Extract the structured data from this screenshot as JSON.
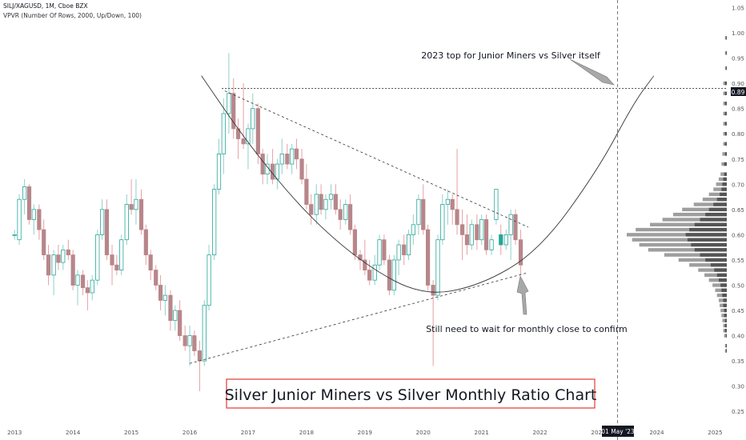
{
  "header": {
    "symbol_line": "SILJ/XAGUSD, 1M, Cboe BZX",
    "indicator_line": "VPVR (Number Of Rows, 2000, Up/Down, 100)"
  },
  "colors": {
    "up": "#26a69a",
    "down": "#b8868a",
    "up_wick": "#8fd1c8",
    "down_wick": "#e8a0a4",
    "vol_dark": "#555555",
    "vol_light": "#9e9e9e",
    "highlight": "#26a69a",
    "title_border": "#e53935"
  },
  "annotations": {
    "top_note": "2023 top for Junior Miners vs Silver itself",
    "bottom_note": "Still need to wait for monthly close to confirm",
    "title_box": "Silver Junior Miners vs Silver Monthly Ratio Chart",
    "price_marker": "0.89",
    "date_marker": "01 May '23"
  },
  "chart_data": {
    "type": "candlestick",
    "title": "Silver Junior Miners vs Silver Monthly Ratio Chart",
    "symbol": "SILJ/XAGUSD",
    "interval": "1M",
    "y_axis": {
      "ticks": [
        0.25,
        0.3,
        0.35,
        0.4,
        0.45,
        0.5,
        0.55,
        0.6,
        0.65,
        0.7,
        0.75,
        0.8,
        0.85,
        0.9,
        0.95,
        1.0,
        1.05
      ],
      "tick_labels": [
        "0.25",
        "0.30",
        "0.35",
        "0.40",
        "0.45",
        "0.50",
        "0.55",
        "0.60",
        "0.65",
        "0.70",
        "0.75",
        "0.80",
        "0.85",
        "0.90",
        "0.95",
        "1.00",
        "1.05"
      ],
      "ylim": [
        0.225,
        1.065
      ]
    },
    "x_axis": {
      "tick_labels": [
        "2013",
        "2014",
        "2015",
        "2016",
        "2017",
        "2018",
        "2019",
        "2020",
        "2021",
        "2022",
        "2023",
        "2024",
        "2025"
      ],
      "tick_years": [
        2013,
        2014,
        2015,
        2016,
        2017,
        2018,
        2019,
        2020,
        2021,
        2022,
        2023,
        2024,
        2025
      ],
      "xlim": [
        2012.75,
        2025.2
      ]
    },
    "grid": false,
    "horizontal_line": 0.89,
    "vertical_line_date": "2023-05-01",
    "candles": [
      {
        "t": 2013.0,
        "o": 0.6,
        "h": 0.61,
        "l": 0.59,
        "c": 0.6
      },
      {
        "t": 2013.08,
        "o": 0.59,
        "h": 0.68,
        "l": 0.58,
        "c": 0.67
      },
      {
        "t": 2013.17,
        "o": 0.67,
        "h": 0.71,
        "l": 0.64,
        "c": 0.695
      },
      {
        "t": 2013.25,
        "o": 0.695,
        "h": 0.7,
        "l": 0.62,
        "c": 0.63
      },
      {
        "t": 2013.33,
        "o": 0.63,
        "h": 0.66,
        "l": 0.6,
        "c": 0.65
      },
      {
        "t": 2013.42,
        "o": 0.65,
        "h": 0.66,
        "l": 0.59,
        "c": 0.61
      },
      {
        "t": 2013.5,
        "o": 0.61,
        "h": 0.63,
        "l": 0.55,
        "c": 0.56
      },
      {
        "t": 2013.58,
        "o": 0.56,
        "h": 0.58,
        "l": 0.5,
        "c": 0.52
      },
      {
        "t": 2013.67,
        "o": 0.52,
        "h": 0.57,
        "l": 0.48,
        "c": 0.56
      },
      {
        "t": 2013.75,
        "o": 0.56,
        "h": 0.58,
        "l": 0.53,
        "c": 0.545
      },
      {
        "t": 2013.83,
        "o": 0.545,
        "h": 0.58,
        "l": 0.53,
        "c": 0.57
      },
      {
        "t": 2013.92,
        "o": 0.57,
        "h": 0.59,
        "l": 0.55,
        "c": 0.56
      },
      {
        "t": 2014.0,
        "o": 0.56,
        "h": 0.57,
        "l": 0.49,
        "c": 0.5
      },
      {
        "t": 2014.08,
        "o": 0.5,
        "h": 0.53,
        "l": 0.46,
        "c": 0.52
      },
      {
        "t": 2014.17,
        "o": 0.52,
        "h": 0.53,
        "l": 0.48,
        "c": 0.495
      },
      {
        "t": 2014.25,
        "o": 0.495,
        "h": 0.51,
        "l": 0.45,
        "c": 0.485
      },
      {
        "t": 2014.33,
        "o": 0.485,
        "h": 0.52,
        "l": 0.47,
        "c": 0.51
      },
      {
        "t": 2014.42,
        "o": 0.51,
        "h": 0.61,
        "l": 0.5,
        "c": 0.6
      },
      {
        "t": 2014.5,
        "o": 0.6,
        "h": 0.67,
        "l": 0.59,
        "c": 0.65
      },
      {
        "t": 2014.58,
        "o": 0.65,
        "h": 0.67,
        "l": 0.55,
        "c": 0.56
      },
      {
        "t": 2014.67,
        "o": 0.56,
        "h": 0.58,
        "l": 0.5,
        "c": 0.54
      },
      {
        "t": 2014.75,
        "o": 0.54,
        "h": 0.56,
        "l": 0.52,
        "c": 0.53
      },
      {
        "t": 2014.83,
        "o": 0.53,
        "h": 0.6,
        "l": 0.52,
        "c": 0.59
      },
      {
        "t": 2014.92,
        "o": 0.59,
        "h": 0.68,
        "l": 0.58,
        "c": 0.66
      },
      {
        "t": 2015.0,
        "o": 0.66,
        "h": 0.71,
        "l": 0.64,
        "c": 0.65
      },
      {
        "t": 2015.08,
        "o": 0.65,
        "h": 0.71,
        "l": 0.62,
        "c": 0.67
      },
      {
        "t": 2015.17,
        "o": 0.67,
        "h": 0.69,
        "l": 0.6,
        "c": 0.61
      },
      {
        "t": 2015.25,
        "o": 0.61,
        "h": 0.62,
        "l": 0.54,
        "c": 0.56
      },
      {
        "t": 2015.33,
        "o": 0.56,
        "h": 0.57,
        "l": 0.51,
        "c": 0.53
      },
      {
        "t": 2015.42,
        "o": 0.53,
        "h": 0.54,
        "l": 0.49,
        "c": 0.5
      },
      {
        "t": 2015.5,
        "o": 0.5,
        "h": 0.52,
        "l": 0.45,
        "c": 0.47
      },
      {
        "t": 2015.58,
        "o": 0.47,
        "h": 0.5,
        "l": 0.44,
        "c": 0.48
      },
      {
        "t": 2015.67,
        "o": 0.48,
        "h": 0.49,
        "l": 0.41,
        "c": 0.43
      },
      {
        "t": 2015.75,
        "o": 0.43,
        "h": 0.46,
        "l": 0.41,
        "c": 0.45
      },
      {
        "t": 2015.83,
        "o": 0.45,
        "h": 0.47,
        "l": 0.39,
        "c": 0.4
      },
      {
        "t": 2015.92,
        "o": 0.4,
        "h": 0.42,
        "l": 0.37,
        "c": 0.38
      },
      {
        "t": 2016.0,
        "o": 0.38,
        "h": 0.42,
        "l": 0.34,
        "c": 0.4
      },
      {
        "t": 2016.08,
        "o": 0.4,
        "h": 0.41,
        "l": 0.36,
        "c": 0.37
      },
      {
        "t": 2016.17,
        "o": 0.37,
        "h": 0.39,
        "l": 0.29,
        "c": 0.35
      },
      {
        "t": 2016.25,
        "o": 0.35,
        "h": 0.47,
        "l": 0.34,
        "c": 0.46
      },
      {
        "t": 2016.33,
        "o": 0.46,
        "h": 0.58,
        "l": 0.45,
        "c": 0.56
      },
      {
        "t": 2016.42,
        "o": 0.56,
        "h": 0.7,
        "l": 0.55,
        "c": 0.69
      },
      {
        "t": 2016.5,
        "o": 0.69,
        "h": 0.79,
        "l": 0.68,
        "c": 0.76
      },
      {
        "t": 2016.58,
        "o": 0.76,
        "h": 0.87,
        "l": 0.72,
        "c": 0.84
      },
      {
        "t": 2016.67,
        "o": 0.84,
        "h": 0.96,
        "l": 0.8,
        "c": 0.88
      },
      {
        "t": 2016.75,
        "o": 0.88,
        "h": 0.91,
        "l": 0.79,
        "c": 0.81
      },
      {
        "t": 2016.83,
        "o": 0.81,
        "h": 0.83,
        "l": 0.75,
        "c": 0.79
      },
      {
        "t": 2016.92,
        "o": 0.79,
        "h": 0.9,
        "l": 0.77,
        "c": 0.78
      },
      {
        "t": 2017.0,
        "o": 0.78,
        "h": 0.82,
        "l": 0.73,
        "c": 0.81
      },
      {
        "t": 2017.08,
        "o": 0.81,
        "h": 0.88,
        "l": 0.78,
        "c": 0.85
      },
      {
        "t": 2017.17,
        "o": 0.85,
        "h": 0.86,
        "l": 0.74,
        "c": 0.76
      },
      {
        "t": 2017.25,
        "o": 0.76,
        "h": 0.77,
        "l": 0.7,
        "c": 0.72
      },
      {
        "t": 2017.33,
        "o": 0.72,
        "h": 0.76,
        "l": 0.7,
        "c": 0.74
      },
      {
        "t": 2017.42,
        "o": 0.74,
        "h": 0.77,
        "l": 0.7,
        "c": 0.71
      },
      {
        "t": 2017.5,
        "o": 0.71,
        "h": 0.75,
        "l": 0.69,
        "c": 0.74
      },
      {
        "t": 2017.58,
        "o": 0.74,
        "h": 0.79,
        "l": 0.72,
        "c": 0.76
      },
      {
        "t": 2017.67,
        "o": 0.76,
        "h": 0.78,
        "l": 0.73,
        "c": 0.74
      },
      {
        "t": 2017.75,
        "o": 0.74,
        "h": 0.78,
        "l": 0.72,
        "c": 0.77
      },
      {
        "t": 2017.83,
        "o": 0.77,
        "h": 0.79,
        "l": 0.73,
        "c": 0.75
      },
      {
        "t": 2017.92,
        "o": 0.75,
        "h": 0.77,
        "l": 0.7,
        "c": 0.71
      },
      {
        "t": 2018.0,
        "o": 0.71,
        "h": 0.74,
        "l": 0.65,
        "c": 0.66
      },
      {
        "t": 2018.08,
        "o": 0.66,
        "h": 0.68,
        "l": 0.62,
        "c": 0.64
      },
      {
        "t": 2018.17,
        "o": 0.64,
        "h": 0.7,
        "l": 0.62,
        "c": 0.68
      },
      {
        "t": 2018.25,
        "o": 0.68,
        "h": 0.7,
        "l": 0.64,
        "c": 0.65
      },
      {
        "t": 2018.33,
        "o": 0.65,
        "h": 0.68,
        "l": 0.63,
        "c": 0.67
      },
      {
        "t": 2018.42,
        "o": 0.67,
        "h": 0.7,
        "l": 0.65,
        "c": 0.68
      },
      {
        "t": 2018.5,
        "o": 0.68,
        "h": 0.7,
        "l": 0.64,
        "c": 0.65
      },
      {
        "t": 2018.58,
        "o": 0.65,
        "h": 0.67,
        "l": 0.61,
        "c": 0.63
      },
      {
        "t": 2018.67,
        "o": 0.63,
        "h": 0.67,
        "l": 0.62,
        "c": 0.66
      },
      {
        "t": 2018.75,
        "o": 0.66,
        "h": 0.68,
        "l": 0.6,
        "c": 0.61
      },
      {
        "t": 2018.83,
        "o": 0.61,
        "h": 0.62,
        "l": 0.55,
        "c": 0.56
      },
      {
        "t": 2018.92,
        "o": 0.56,
        "h": 0.57,
        "l": 0.53,
        "c": 0.55
      },
      {
        "t": 2019.0,
        "o": 0.55,
        "h": 0.59,
        "l": 0.52,
        "c": 0.53
      },
      {
        "t": 2019.08,
        "o": 0.53,
        "h": 0.55,
        "l": 0.5,
        "c": 0.51
      },
      {
        "t": 2019.17,
        "o": 0.51,
        "h": 0.56,
        "l": 0.5,
        "c": 0.54
      },
      {
        "t": 2019.25,
        "o": 0.54,
        "h": 0.6,
        "l": 0.53,
        "c": 0.59
      },
      {
        "t": 2019.33,
        "o": 0.59,
        "h": 0.6,
        "l": 0.54,
        "c": 0.55
      },
      {
        "t": 2019.42,
        "o": 0.55,
        "h": 0.56,
        "l": 0.48,
        "c": 0.49
      },
      {
        "t": 2019.5,
        "o": 0.49,
        "h": 0.56,
        "l": 0.48,
        "c": 0.55
      },
      {
        "t": 2019.58,
        "o": 0.55,
        "h": 0.59,
        "l": 0.52,
        "c": 0.58
      },
      {
        "t": 2019.67,
        "o": 0.58,
        "h": 0.6,
        "l": 0.54,
        "c": 0.56
      },
      {
        "t": 2019.75,
        "o": 0.56,
        "h": 0.61,
        "l": 0.55,
        "c": 0.6
      },
      {
        "t": 2019.83,
        "o": 0.6,
        "h": 0.64,
        "l": 0.58,
        "c": 0.62
      },
      {
        "t": 2019.92,
        "o": 0.62,
        "h": 0.68,
        "l": 0.6,
        "c": 0.67
      },
      {
        "t": 2020.0,
        "o": 0.67,
        "h": 0.7,
        "l": 0.6,
        "c": 0.61
      },
      {
        "t": 2020.08,
        "o": 0.61,
        "h": 0.62,
        "l": 0.49,
        "c": 0.5
      },
      {
        "t": 2020.17,
        "o": 0.5,
        "h": 0.51,
        "l": 0.34,
        "c": 0.48
      },
      {
        "t": 2020.25,
        "o": 0.48,
        "h": 0.6,
        "l": 0.47,
        "c": 0.59
      },
      {
        "t": 2020.33,
        "o": 0.59,
        "h": 0.68,
        "l": 0.58,
        "c": 0.66
      },
      {
        "t": 2020.42,
        "o": 0.66,
        "h": 0.69,
        "l": 0.62,
        "c": 0.67
      },
      {
        "t": 2020.5,
        "o": 0.67,
        "h": 0.68,
        "l": 0.62,
        "c": 0.65
      },
      {
        "t": 2020.58,
        "o": 0.65,
        "h": 0.77,
        "l": 0.6,
        "c": 0.62
      },
      {
        "t": 2020.67,
        "o": 0.62,
        "h": 0.65,
        "l": 0.55,
        "c": 0.6
      },
      {
        "t": 2020.75,
        "o": 0.6,
        "h": 0.64,
        "l": 0.56,
        "c": 0.58
      },
      {
        "t": 2020.83,
        "o": 0.58,
        "h": 0.63,
        "l": 0.57,
        "c": 0.62
      },
      {
        "t": 2020.92,
        "o": 0.62,
        "h": 0.64,
        "l": 0.57,
        "c": 0.59
      },
      {
        "t": 2021.0,
        "o": 0.59,
        "h": 0.64,
        "l": 0.58,
        "c": 0.63
      },
      {
        "t": 2021.08,
        "o": 0.63,
        "h": 0.64,
        "l": 0.56,
        "c": 0.57
      },
      {
        "t": 2021.17,
        "o": 0.57,
        "h": 0.6,
        "l": 0.56,
        "c": 0.59
      },
      {
        "t": 2021.25,
        "o": 0.63,
        "h": 0.69,
        "l": 0.62,
        "c": 0.69
      },
      {
        "t": 2021.33,
        "o": 0.6,
        "h": 0.62,
        "l": 0.56,
        "c": 0.58
      },
      {
        "t": 2021.42,
        "o": 0.58,
        "h": 0.61,
        "l": 0.57,
        "c": 0.6
      },
      {
        "t": 2021.5,
        "o": 0.6,
        "h": 0.65,
        "l": 0.55,
        "c": 0.64
      },
      {
        "t": 2021.58,
        "o": 0.64,
        "h": 0.65,
        "l": 0.58,
        "c": 0.59
      },
      {
        "t": 2021.67,
        "o": 0.59,
        "h": 0.61,
        "l": 0.52,
        "c": 0.54
      }
    ],
    "volume_profile": {
      "levels": [
        0.37,
        0.38,
        0.4,
        0.41,
        0.42,
        0.43,
        0.44,
        0.45,
        0.46,
        0.47,
        0.48,
        0.49,
        0.5,
        0.51,
        0.52,
        0.53,
        0.54,
        0.55,
        0.56,
        0.57,
        0.58,
        0.59,
        0.6,
        0.61,
        0.62,
        0.63,
        0.64,
        0.65,
        0.66,
        0.67,
        0.68,
        0.69,
        0.7,
        0.71,
        0.72,
        0.74,
        0.76,
        0.78,
        0.8,
        0.82,
        0.84,
        0.86,
        0.88,
        0.9,
        0.93,
        0.96,
        0.99
      ],
      "up": [
        1,
        1,
        2,
        2,
        2,
        3,
        3,
        4,
        4,
        5,
        6,
        7,
        9,
        11,
        14,
        18,
        24,
        30,
        40,
        52,
        58,
        62,
        66,
        60,
        50,
        42,
        36,
        30,
        22,
        16,
        12,
        9,
        7,
        5,
        4,
        3,
        3,
        2,
        2,
        2,
        2,
        2,
        2,
        2,
        1,
        1,
        1
      ],
      "down": [
        1,
        1,
        1,
        2,
        2,
        2,
        3,
        3,
        4,
        4,
        5,
        6,
        7,
        9,
        11,
        14,
        18,
        24,
        30,
        36,
        40,
        44,
        46,
        42,
        36,
        30,
        24,
        20,
        15,
        11,
        8,
        6,
        5,
        4,
        3,
        3,
        2,
        2,
        2,
        2,
        2,
        2,
        2,
        2,
        1,
        1,
        1
      ]
    },
    "trendlines": [
      {
        "name": "upper-resistance",
        "points": [
          [
            2016.6,
            0.885
          ],
          [
            2021.8,
            0.615
          ]
        ],
        "style": "dashed"
      },
      {
        "name": "lower-support",
        "points": [
          [
            2016.0,
            0.345
          ],
          [
            2021.8,
            0.525
          ]
        ],
        "style": "dashed"
      },
      {
        "name": "cup-curve",
        "style": "solid",
        "points": [
          [
            2016.2,
            0.915
          ],
          [
            2017.0,
            0.78
          ],
          [
            2018.0,
            0.64
          ],
          [
            2019.0,
            0.54
          ],
          [
            2020.0,
            0.478
          ],
          [
            2021.0,
            0.5
          ],
          [
            2022.0,
            0.57
          ],
          [
            2023.0,
            0.73
          ],
          [
            2023.6,
            0.86
          ],
          [
            2023.95,
            0.915
          ]
        ]
      }
    ]
  }
}
